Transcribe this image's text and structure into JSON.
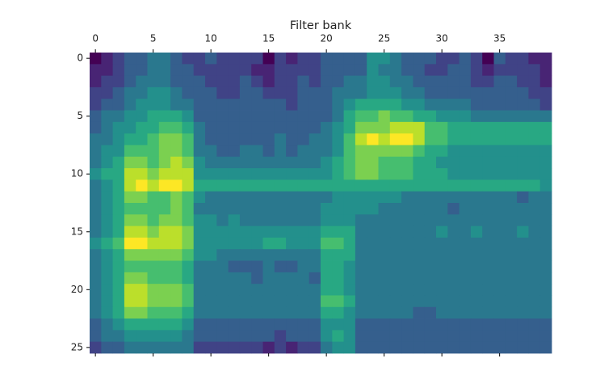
{
  "chart_data": {
    "type": "heatmap",
    "xlabel": "Filter bank",
    "colormap": "viridis",
    "xlim": [
      -0.5,
      39.5
    ],
    "ylim": [
      25.5,
      -0.5
    ],
    "xticks": [
      0,
      5,
      10,
      15,
      20,
      25,
      30,
      35
    ],
    "yticks": [
      0,
      5,
      10,
      15,
      20,
      25
    ],
    "z": [
      [
        0.0,
        0.1,
        0.2,
        0.3,
        0.3,
        0.4,
        0.4,
        0.3,
        0.2,
        0.2,
        0.3,
        0.2,
        0.2,
        0.2,
        0.2,
        0.0,
        0.2,
        0.1,
        0.2,
        0.2,
        0.3,
        0.3,
        0.3,
        0.3,
        0.5,
        0.5,
        0.4,
        0.3,
        0.3,
        0.3,
        0.2,
        0.2,
        0.3,
        0.2,
        0.0,
        0.3,
        0.2,
        0.2,
        0.1,
        0.1
      ],
      [
        0.1,
        0.1,
        0.2,
        0.3,
        0.3,
        0.4,
        0.4,
        0.3,
        0.3,
        0.2,
        0.2,
        0.2,
        0.2,
        0.2,
        0.1,
        0.1,
        0.2,
        0.2,
        0.2,
        0.2,
        0.3,
        0.3,
        0.3,
        0.3,
        0.5,
        0.4,
        0.4,
        0.3,
        0.3,
        0.2,
        0.2,
        0.3,
        0.3,
        0.2,
        0.1,
        0.2,
        0.2,
        0.2,
        0.2,
        0.1
      ],
      [
        0.1,
        0.2,
        0.2,
        0.3,
        0.4,
        0.4,
        0.4,
        0.3,
        0.3,
        0.3,
        0.2,
        0.2,
        0.2,
        0.3,
        0.2,
        0.1,
        0.2,
        0.2,
        0.3,
        0.2,
        0.3,
        0.3,
        0.4,
        0.4,
        0.5,
        0.5,
        0.4,
        0.4,
        0.3,
        0.3,
        0.3,
        0.3,
        0.3,
        0.2,
        0.2,
        0.3,
        0.3,
        0.2,
        0.2,
        0.1
      ],
      [
        0.2,
        0.2,
        0.3,
        0.4,
        0.4,
        0.5,
        0.5,
        0.4,
        0.3,
        0.3,
        0.3,
        0.2,
        0.2,
        0.3,
        0.3,
        0.2,
        0.2,
        0.2,
        0.3,
        0.3,
        0.3,
        0.4,
        0.4,
        0.4,
        0.5,
        0.5,
        0.5,
        0.4,
        0.4,
        0.3,
        0.3,
        0.3,
        0.3,
        0.3,
        0.3,
        0.3,
        0.3,
        0.3,
        0.2,
        0.2
      ],
      [
        0.2,
        0.3,
        0.3,
        0.4,
        0.5,
        0.5,
        0.5,
        0.4,
        0.4,
        0.3,
        0.3,
        0.3,
        0.3,
        0.3,
        0.3,
        0.3,
        0.3,
        0.2,
        0.3,
        0.3,
        0.3,
        0.4,
        0.5,
        0.6,
        0.6,
        0.6,
        0.6,
        0.5,
        0.5,
        0.4,
        0.4,
        0.4,
        0.4,
        0.3,
        0.3,
        0.3,
        0.3,
        0.3,
        0.3,
        0.2
      ],
      [
        0.3,
        0.4,
        0.4,
        0.5,
        0.5,
        0.6,
        0.6,
        0.6,
        0.5,
        0.3,
        0.3,
        0.3,
        0.3,
        0.3,
        0.3,
        0.3,
        0.3,
        0.3,
        0.3,
        0.3,
        0.3,
        0.4,
        0.6,
        0.7,
        0.7,
        0.8,
        0.7,
        0.7,
        0.6,
        0.6,
        0.5,
        0.5,
        0.5,
        0.4,
        0.4,
        0.4,
        0.4,
        0.4,
        0.4,
        0.4
      ],
      [
        0.3,
        0.4,
        0.5,
        0.5,
        0.6,
        0.6,
        0.7,
        0.7,
        0.6,
        0.4,
        0.3,
        0.3,
        0.3,
        0.3,
        0.3,
        0.3,
        0.3,
        0.3,
        0.3,
        0.3,
        0.4,
        0.5,
        0.6,
        0.8,
        0.8,
        0.8,
        0.9,
        0.9,
        0.9,
        0.7,
        0.7,
        0.6,
        0.6,
        0.6,
        0.6,
        0.6,
        0.6,
        0.6,
        0.6,
        0.6
      ],
      [
        0.4,
        0.4,
        0.5,
        0.6,
        0.6,
        0.7,
        0.8,
        0.8,
        0.7,
        0.4,
        0.3,
        0.3,
        0.3,
        0.3,
        0.3,
        0.3,
        0.4,
        0.3,
        0.3,
        0.4,
        0.4,
        0.5,
        0.7,
        0.9,
        1.0,
        0.9,
        1.0,
        1.0,
        0.9,
        0.7,
        0.7,
        0.6,
        0.6,
        0.6,
        0.6,
        0.6,
        0.6,
        0.6,
        0.6,
        0.6
      ],
      [
        0.4,
        0.5,
        0.5,
        0.7,
        0.7,
        0.7,
        0.8,
        0.8,
        0.7,
        0.4,
        0.4,
        0.3,
        0.3,
        0.4,
        0.4,
        0.3,
        0.4,
        0.3,
        0.4,
        0.4,
        0.4,
        0.5,
        0.7,
        0.8,
        0.8,
        0.8,
        0.8,
        0.8,
        0.7,
        0.6,
        0.6,
        0.5,
        0.5,
        0.5,
        0.5,
        0.5,
        0.5,
        0.5,
        0.5,
        0.5
      ],
      [
        0.4,
        0.5,
        0.6,
        0.8,
        0.8,
        0.7,
        0.8,
        0.9,
        0.8,
        0.5,
        0.4,
        0.4,
        0.4,
        0.4,
        0.4,
        0.4,
        0.4,
        0.4,
        0.4,
        0.4,
        0.5,
        0.6,
        0.7,
        0.8,
        0.8,
        0.7,
        0.7,
        0.7,
        0.6,
        0.6,
        0.5,
        0.5,
        0.5,
        0.5,
        0.5,
        0.5,
        0.5,
        0.5,
        0.5,
        0.5
      ],
      [
        0.5,
        0.6,
        0.6,
        0.9,
        0.9,
        0.8,
        0.9,
        0.9,
        0.9,
        0.5,
        0.5,
        0.5,
        0.5,
        0.5,
        0.5,
        0.5,
        0.5,
        0.5,
        0.5,
        0.5,
        0.5,
        0.6,
        0.7,
        0.8,
        0.8,
        0.7,
        0.7,
        0.7,
        0.6,
        0.6,
        0.6,
        0.5,
        0.5,
        0.5,
        0.5,
        0.5,
        0.5,
        0.5,
        0.5,
        0.5
      ],
      [
        0.4,
        0.5,
        0.6,
        0.9,
        1.0,
        0.9,
        1.0,
        1.0,
        0.9,
        0.6,
        0.6,
        0.6,
        0.6,
        0.6,
        0.6,
        0.6,
        0.6,
        0.6,
        0.6,
        0.6,
        0.6,
        0.6,
        0.6,
        0.6,
        0.6,
        0.6,
        0.6,
        0.6,
        0.6,
        0.6,
        0.6,
        0.6,
        0.6,
        0.6,
        0.6,
        0.6,
        0.6,
        0.6,
        0.6,
        0.5
      ],
      [
        0.4,
        0.5,
        0.6,
        0.8,
        0.8,
        0.7,
        0.7,
        0.8,
        0.7,
        0.5,
        0.4,
        0.4,
        0.4,
        0.4,
        0.4,
        0.4,
        0.4,
        0.4,
        0.4,
        0.4,
        0.4,
        0.5,
        0.5,
        0.5,
        0.5,
        0.5,
        0.5,
        0.4,
        0.4,
        0.4,
        0.4,
        0.4,
        0.4,
        0.4,
        0.4,
        0.4,
        0.4,
        0.3,
        0.4,
        0.4
      ],
      [
        0.4,
        0.5,
        0.6,
        0.7,
        0.7,
        0.7,
        0.7,
        0.8,
        0.7,
        0.4,
        0.4,
        0.4,
        0.4,
        0.4,
        0.4,
        0.4,
        0.4,
        0.4,
        0.4,
        0.4,
        0.5,
        0.5,
        0.5,
        0.5,
        0.5,
        0.4,
        0.4,
        0.4,
        0.4,
        0.4,
        0.4,
        0.3,
        0.4,
        0.4,
        0.4,
        0.4,
        0.4,
        0.4,
        0.4,
        0.4
      ],
      [
        0.4,
        0.5,
        0.6,
        0.8,
        0.8,
        0.7,
        0.8,
        0.8,
        0.7,
        0.5,
        0.5,
        0.4,
        0.5,
        0.4,
        0.4,
        0.4,
        0.4,
        0.4,
        0.4,
        0.4,
        0.5,
        0.5,
        0.5,
        0.4,
        0.4,
        0.4,
        0.4,
        0.4,
        0.4,
        0.4,
        0.4,
        0.4,
        0.4,
        0.4,
        0.4,
        0.4,
        0.4,
        0.4,
        0.4,
        0.4
      ],
      [
        0.4,
        0.5,
        0.6,
        0.9,
        0.9,
        0.8,
        0.9,
        0.9,
        0.8,
        0.5,
        0.5,
        0.5,
        0.5,
        0.5,
        0.5,
        0.5,
        0.5,
        0.5,
        0.5,
        0.5,
        0.6,
        0.6,
        0.6,
        0.4,
        0.4,
        0.4,
        0.4,
        0.4,
        0.4,
        0.4,
        0.5,
        0.4,
        0.4,
        0.5,
        0.4,
        0.4,
        0.4,
        0.5,
        0.4,
        0.4
      ],
      [
        0.5,
        0.6,
        0.7,
        1.0,
        1.0,
        0.9,
        0.9,
        0.9,
        0.8,
        0.5,
        0.5,
        0.5,
        0.5,
        0.5,
        0.5,
        0.6,
        0.6,
        0.5,
        0.5,
        0.5,
        0.7,
        0.7,
        0.6,
        0.4,
        0.4,
        0.4,
        0.4,
        0.4,
        0.4,
        0.4,
        0.4,
        0.4,
        0.4,
        0.4,
        0.4,
        0.4,
        0.4,
        0.4,
        0.4,
        0.4
      ],
      [
        0.4,
        0.5,
        0.6,
        0.8,
        0.8,
        0.8,
        0.8,
        0.8,
        0.7,
        0.5,
        0.5,
        0.4,
        0.4,
        0.4,
        0.4,
        0.4,
        0.4,
        0.4,
        0.4,
        0.4,
        0.6,
        0.6,
        0.6,
        0.4,
        0.4,
        0.4,
        0.4,
        0.4,
        0.4,
        0.4,
        0.4,
        0.4,
        0.4,
        0.4,
        0.4,
        0.4,
        0.4,
        0.4,
        0.4,
        0.4
      ],
      [
        0.4,
        0.5,
        0.6,
        0.7,
        0.7,
        0.7,
        0.7,
        0.7,
        0.6,
        0.4,
        0.4,
        0.4,
        0.3,
        0.3,
        0.3,
        0.4,
        0.3,
        0.3,
        0.4,
        0.4,
        0.6,
        0.6,
        0.5,
        0.4,
        0.4,
        0.4,
        0.4,
        0.4,
        0.4,
        0.4,
        0.4,
        0.4,
        0.4,
        0.4,
        0.4,
        0.4,
        0.4,
        0.4,
        0.4,
        0.4
      ],
      [
        0.4,
        0.5,
        0.6,
        0.8,
        0.8,
        0.7,
        0.7,
        0.7,
        0.6,
        0.4,
        0.4,
        0.4,
        0.4,
        0.4,
        0.3,
        0.4,
        0.4,
        0.4,
        0.4,
        0.3,
        0.6,
        0.6,
        0.5,
        0.4,
        0.4,
        0.4,
        0.4,
        0.4,
        0.4,
        0.4,
        0.4,
        0.4,
        0.4,
        0.4,
        0.4,
        0.4,
        0.4,
        0.4,
        0.4,
        0.4
      ],
      [
        0.4,
        0.5,
        0.6,
        0.9,
        0.9,
        0.8,
        0.8,
        0.8,
        0.7,
        0.4,
        0.4,
        0.4,
        0.4,
        0.4,
        0.4,
        0.4,
        0.4,
        0.4,
        0.4,
        0.4,
        0.6,
        0.6,
        0.5,
        0.4,
        0.4,
        0.4,
        0.4,
        0.4,
        0.4,
        0.4,
        0.4,
        0.4,
        0.4,
        0.4,
        0.4,
        0.4,
        0.4,
        0.4,
        0.4,
        0.4
      ],
      [
        0.4,
        0.5,
        0.6,
        0.9,
        0.9,
        0.8,
        0.8,
        0.8,
        0.7,
        0.4,
        0.4,
        0.4,
        0.4,
        0.4,
        0.4,
        0.4,
        0.4,
        0.4,
        0.4,
        0.4,
        0.7,
        0.7,
        0.6,
        0.4,
        0.4,
        0.4,
        0.4,
        0.4,
        0.4,
        0.4,
        0.4,
        0.4,
        0.4,
        0.4,
        0.4,
        0.4,
        0.4,
        0.4,
        0.4,
        0.4
      ],
      [
        0.4,
        0.5,
        0.6,
        0.8,
        0.8,
        0.7,
        0.7,
        0.7,
        0.6,
        0.4,
        0.4,
        0.4,
        0.4,
        0.4,
        0.4,
        0.4,
        0.4,
        0.4,
        0.4,
        0.4,
        0.6,
        0.6,
        0.5,
        0.4,
        0.4,
        0.4,
        0.4,
        0.4,
        0.3,
        0.3,
        0.4,
        0.4,
        0.4,
        0.4,
        0.4,
        0.4,
        0.4,
        0.4,
        0.4,
        0.4
      ],
      [
        0.3,
        0.4,
        0.5,
        0.6,
        0.6,
        0.6,
        0.6,
        0.6,
        0.5,
        0.3,
        0.3,
        0.3,
        0.3,
        0.3,
        0.3,
        0.3,
        0.3,
        0.3,
        0.3,
        0.3,
        0.5,
        0.5,
        0.5,
        0.3,
        0.3,
        0.3,
        0.3,
        0.3,
        0.3,
        0.3,
        0.3,
        0.3,
        0.3,
        0.3,
        0.3,
        0.3,
        0.3,
        0.3,
        0.3,
        0.3
      ],
      [
        0.3,
        0.4,
        0.4,
        0.5,
        0.5,
        0.5,
        0.5,
        0.5,
        0.4,
        0.3,
        0.3,
        0.3,
        0.3,
        0.3,
        0.3,
        0.3,
        0.2,
        0.3,
        0.3,
        0.3,
        0.5,
        0.6,
        0.5,
        0.3,
        0.3,
        0.3,
        0.3,
        0.3,
        0.3,
        0.3,
        0.3,
        0.3,
        0.3,
        0.3,
        0.3,
        0.3,
        0.3,
        0.3,
        0.3,
        0.3
      ],
      [
        0.2,
        0.3,
        0.3,
        0.4,
        0.4,
        0.4,
        0.4,
        0.4,
        0.4,
        0.2,
        0.2,
        0.2,
        0.2,
        0.2,
        0.2,
        0.1,
        0.2,
        0.1,
        0.2,
        0.2,
        0.4,
        0.5,
        0.5,
        0.3,
        0.3,
        0.3,
        0.3,
        0.3,
        0.3,
        0.3,
        0.3,
        0.3,
        0.3,
        0.3,
        0.3,
        0.3,
        0.3,
        0.3,
        0.3,
        0.3
      ]
    ]
  }
}
